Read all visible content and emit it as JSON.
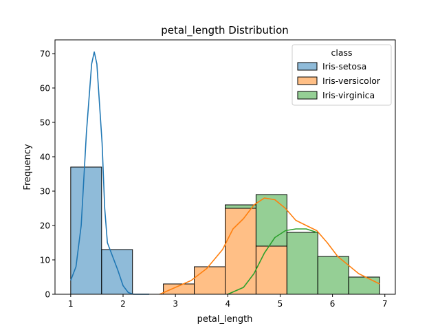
{
  "chart_data": {
    "type": "bar",
    "title": "petal_length Distribution",
    "xlabel": "petal_length",
    "ylabel": "Frequency",
    "xlim": [
      0.7,
      7.2
    ],
    "ylim": [
      0,
      74
    ],
    "xticks": [
      1,
      2,
      3,
      4,
      5,
      6,
      7
    ],
    "yticks": [
      0,
      10,
      20,
      30,
      40,
      50,
      60,
      70
    ],
    "bin_edges": [
      1.0,
      1.59,
      2.18,
      2.77,
      3.36,
      3.95,
      4.54,
      5.13,
      5.72,
      6.31,
      6.9
    ],
    "stacked": true,
    "grid": false,
    "legend": {
      "title": "class",
      "placement": "top-right"
    },
    "series": [
      {
        "name": "Iris-setosa",
        "color": "#1f77b4",
        "values": [
          37,
          13,
          0,
          0,
          0,
          0,
          0,
          0,
          0,
          0
        ],
        "kde": [
          [
            1.0,
            4
          ],
          [
            1.1,
            8
          ],
          [
            1.2,
            20
          ],
          [
            1.3,
            47
          ],
          [
            1.4,
            67
          ],
          [
            1.45,
            70.5
          ],
          [
            1.5,
            67
          ],
          [
            1.6,
            44
          ],
          [
            1.65,
            25
          ],
          [
            1.7,
            15
          ],
          [
            1.8,
            11
          ],
          [
            1.9,
            7
          ],
          [
            2.0,
            2.5
          ],
          [
            2.1,
            0.5
          ],
          [
            2.2,
            0
          ],
          [
            2.5,
            0
          ]
        ]
      },
      {
        "name": "Iris-versicolor",
        "color": "#ff7f0e",
        "values": [
          0,
          0,
          0,
          3,
          8,
          25,
          14,
          0,
          0,
          0
        ],
        "kde": [
          [
            2.7,
            0
          ],
          [
            3.0,
            2
          ],
          [
            3.3,
            4
          ],
          [
            3.6,
            7.5
          ],
          [
            3.9,
            13
          ],
          [
            4.1,
            19
          ],
          [
            4.3,
            22
          ],
          [
            4.5,
            26
          ],
          [
            4.7,
            28
          ],
          [
            4.9,
            27.5
          ],
          [
            5.1,
            25
          ],
          [
            5.3,
            21.5
          ],
          [
            5.5,
            20
          ],
          [
            5.7,
            18.5
          ],
          [
            5.9,
            15
          ],
          [
            6.1,
            11
          ],
          [
            6.3,
            8.5
          ],
          [
            6.5,
            6
          ],
          [
            6.7,
            4.5
          ],
          [
            6.9,
            3
          ]
        ]
      },
      {
        "name": "Iris-virginica",
        "color": "#2ca02c",
        "values": [
          0,
          0,
          0,
          0,
          0,
          1,
          15,
          18,
          11,
          5
        ],
        "kde": [
          [
            4.0,
            0
          ],
          [
            4.3,
            2
          ],
          [
            4.5,
            6
          ],
          [
            4.7,
            12
          ],
          [
            4.9,
            16.5
          ],
          [
            5.1,
            18.5
          ],
          [
            5.3,
            19
          ],
          [
            5.5,
            19
          ],
          [
            5.7,
            18
          ]
        ]
      }
    ]
  }
}
